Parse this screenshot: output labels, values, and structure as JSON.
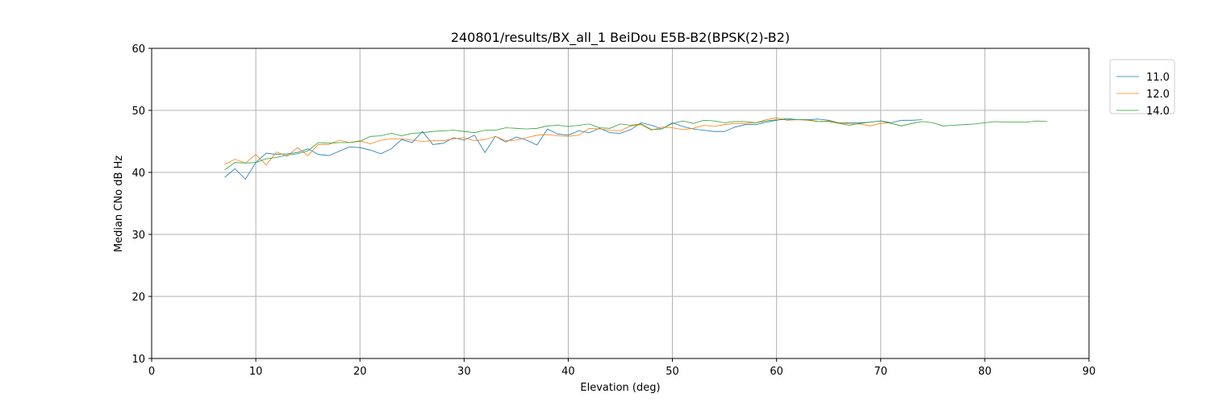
{
  "chart_data": {
    "type": "line",
    "title": "240801/results/BX_all_1 BeiDou E5B-B2(BPSK(2)-B2)",
    "xlabel": "Elevation (deg)",
    "ylabel": "Median CNo dB Hz",
    "xlim": [
      0,
      90
    ],
    "ylim": [
      10,
      60
    ],
    "xticks": [
      0,
      10,
      20,
      30,
      40,
      50,
      60,
      70,
      80,
      90
    ],
    "yticks": [
      10,
      20,
      30,
      40,
      50,
      60
    ],
    "grid": true,
    "legend_placement": "upper-right-outside",
    "series": [
      {
        "name": "11.0",
        "color": "#1f77b4",
        "x_start": 7,
        "values": [
          39.2,
          40.6,
          38.9,
          41.6,
          43.1,
          42.9,
          43.0,
          43.2,
          43.8,
          42.9,
          42.7,
          43.4,
          44.1,
          44.0,
          43.6,
          43.0,
          43.8,
          45.3,
          44.8,
          46.6,
          44.5,
          44.7,
          45.6,
          45.2,
          46.0,
          43.2,
          45.8,
          44.9,
          45.7,
          45.2,
          44.4,
          47.0,
          46.2,
          46.0,
          46.7,
          46.4,
          47.1,
          46.4,
          46.3,
          46.9,
          48.0,
          47.6,
          47.0,
          48.0,
          47.4,
          47.0,
          46.8,
          46.6,
          46.6,
          47.3,
          47.7,
          47.7,
          48.1,
          48.4,
          48.7,
          48.5,
          48.5,
          48.6,
          48.4,
          48.0,
          48.0,
          48.0,
          48.1,
          48.3,
          48.0,
          48.4,
          48.4,
          48.5
        ]
      },
      {
        "name": "12.0",
        "color": "#ff7f0e",
        "x_start": 7,
        "values": [
          41.3,
          42.1,
          41.5,
          42.9,
          41.2,
          43.3,
          42.6,
          44.0,
          42.7,
          44.5,
          44.5,
          45.2,
          44.8,
          45.1,
          44.6,
          45.2,
          45.4,
          45.4,
          45.2,
          45.0,
          45.1,
          45.1,
          45.4,
          45.6,
          45.1,
          45.3,
          45.8,
          45.1,
          45.2,
          45.6,
          46.0,
          46.1,
          45.9,
          45.8,
          46.0,
          47.1,
          47.0,
          46.8,
          46.7,
          47.5,
          47.7,
          46.8,
          47.3,
          47.2,
          46.9,
          47.1,
          47.6,
          47.4,
          47.7,
          47.9,
          47.9,
          48.0,
          48.5,
          48.8,
          48.4,
          48.5,
          48.4,
          48.2,
          48.3,
          48.0,
          47.8,
          47.8,
          47.5,
          47.9,
          48.0
        ]
      },
      {
        "name": "14.0",
        "color": "#2ca02c",
        "x_start": 7,
        "values": [
          40.4,
          41.6,
          41.5,
          41.6,
          42.2,
          42.4,
          42.8,
          43.0,
          43.5,
          44.8,
          44.7,
          44.8,
          44.8,
          45.0,
          45.8,
          45.9,
          46.3,
          45.9,
          46.3,
          46.4,
          46.6,
          46.7,
          46.8,
          46.6,
          46.4,
          46.8,
          46.8,
          47.2,
          47.1,
          47.0,
          47.1,
          47.5,
          47.6,
          47.4,
          47.6,
          47.8,
          47.2,
          47.1,
          47.8,
          47.6,
          47.8,
          46.9,
          47.0,
          47.9,
          48.3,
          47.9,
          48.4,
          48.3,
          48.0,
          48.2,
          48.2,
          48.0,
          48.3,
          48.5,
          48.5,
          48.5,
          48.5,
          48.2,
          48.2,
          47.9,
          47.6,
          47.9,
          48.1,
          48.3,
          47.9,
          47.5,
          47.9,
          48.2,
          48.0,
          47.5,
          47.6,
          47.7,
          47.8,
          48.0,
          48.2,
          48.1,
          48.1,
          48.1,
          48.3,
          48.2
        ]
      }
    ]
  }
}
